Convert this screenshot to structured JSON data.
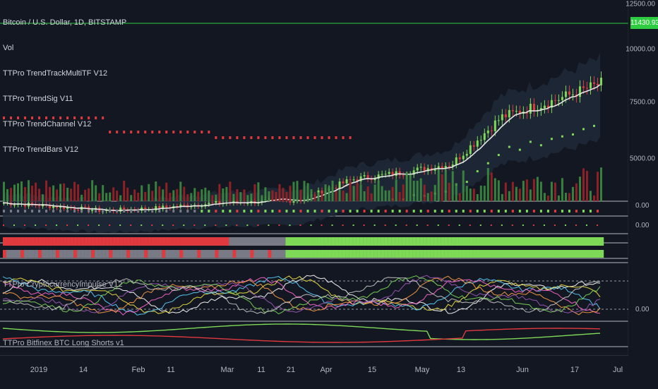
{
  "chart": {
    "symbol_line": "Bitcoin / U.S. Dollar, 1D, BITSTAMP",
    "indicators": [
      "Vol",
      "TTPro TrendTrackMultiTF V12",
      "TTPro TrendSig V11",
      "TTPro TrendChannel V12",
      "TTPro TrendBars V12"
    ],
    "lower_panes": {
      "impulse_label": "TTPro CryptocurrencyImpulse V12",
      "bottom_label": "TTPro Bitfinex BTC Long Shorts v1"
    },
    "current_price": "11430.93",
    "price_axis_ticks": [
      "12500.00",
      "10000.00",
      "7500.00",
      "5000.00"
    ],
    "pane_values": [
      "0.00",
      "0.00",
      "0.00"
    ],
    "time_axis_ticks": [
      "2019",
      "14",
      "Feb",
      "11",
      "Mar",
      "11",
      "21",
      "Apr",
      "15",
      "May",
      "13",
      "Jun",
      "17",
      "Jul"
    ],
    "colors": {
      "background": "#131722",
      "up": "#7ed957",
      "down": "#e0393e",
      "price_line": "#2ecc40",
      "neutral": "#787b86"
    }
  },
  "chart_data": {
    "type": "line",
    "title": "Bitcoin / U.S. Dollar, 1D, BITSTAMP",
    "xlabel": "",
    "ylabel": "",
    "x": [
      "2019",
      "14",
      "Feb",
      "11",
      "Mar",
      "11",
      "21",
      "Apr",
      "15",
      "May",
      "13",
      "Jun",
      "17"
    ],
    "series": [
      {
        "values": [
          3850,
          3700,
          3500,
          3600,
          3800,
          3900,
          4000,
          4900,
          5200,
          5600,
          7700,
          8400,
          9200
        ]
      }
    ],
    "ylim": [
      2500,
      12500
    ]
  }
}
